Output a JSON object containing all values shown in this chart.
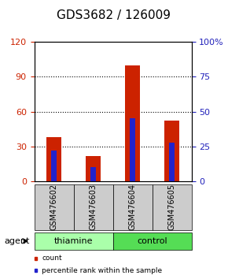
{
  "title": "GDS3682 / 126009",
  "samples": [
    "GSM476602",
    "GSM476603",
    "GSM476604",
    "GSM476605"
  ],
  "count_values": [
    38,
    22,
    100,
    52
  ],
  "percentile_values": [
    22,
    10,
    45,
    28
  ],
  "left_ylim": [
    0,
    120
  ],
  "right_ylim": [
    0,
    100
  ],
  "left_ticks": [
    0,
    30,
    60,
    90,
    120
  ],
  "right_ticks": [
    0,
    25,
    50,
    75,
    100
  ],
  "right_tick_labels": [
    "0",
    "25",
    "50",
    "75",
    "100%"
  ],
  "grid_values": [
    30,
    60,
    90
  ],
  "bar_color_red": "#cc2200",
  "bar_color_blue": "#2222cc",
  "groups": [
    {
      "label": "thiamine",
      "indices": [
        0,
        1
      ],
      "color": "#aaffaa"
    },
    {
      "label": "control",
      "indices": [
        2,
        3
      ],
      "color": "#55dd55"
    }
  ],
  "agent_label": "agent",
  "legend_items": [
    {
      "color": "#cc2200",
      "label": "count"
    },
    {
      "color": "#2222cc",
      "label": "percentile rank within the sample"
    }
  ],
  "title_fontsize": 11,
  "tick_fontsize": 8,
  "label_fontsize": 8,
  "sample_label_fontsize": 7,
  "background_color": "#ffffff",
  "plot_bg_color": "#ffffff",
  "left_tick_color": "#cc2200",
  "right_tick_color": "#2222bb"
}
